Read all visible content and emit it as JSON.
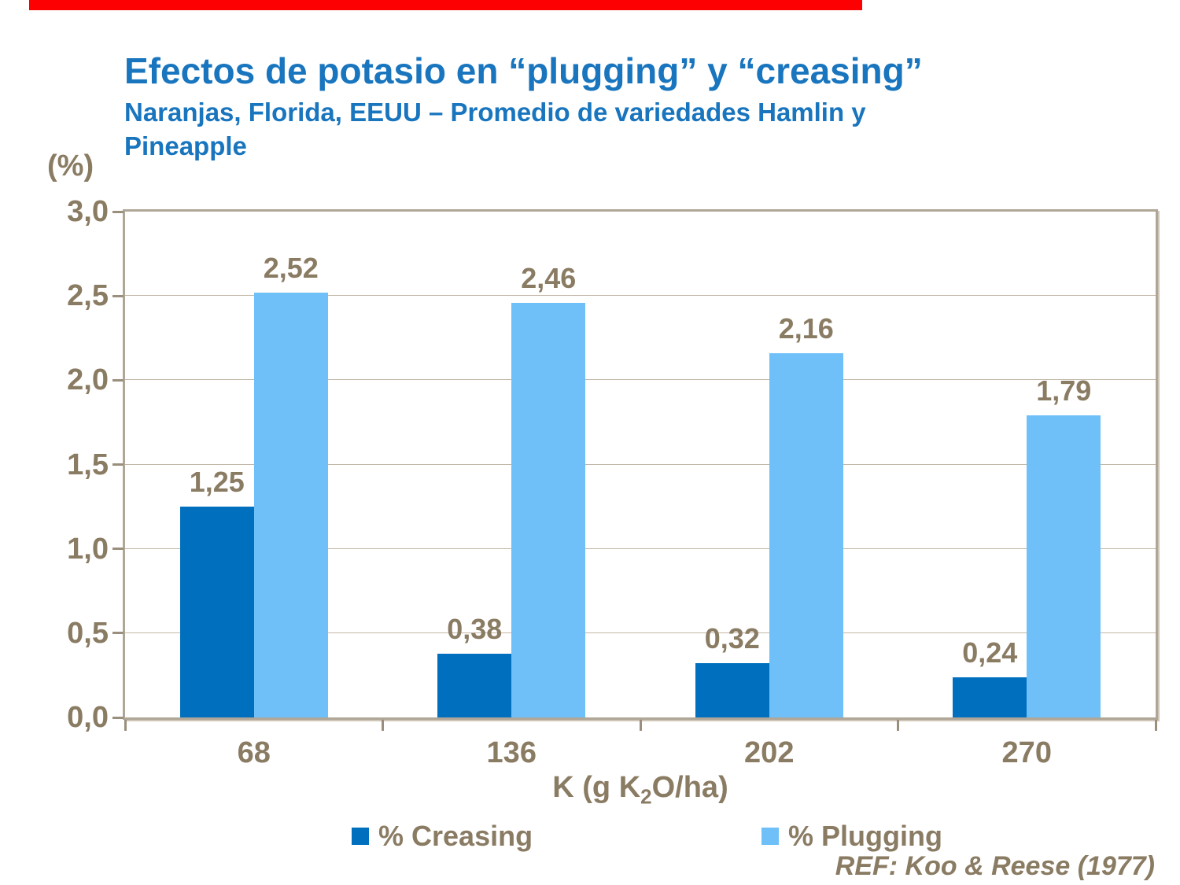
{
  "top_bar": {
    "color": "#fd0002"
  },
  "header": {
    "title": "Efectos de potasio en “plugging” y “creasing”",
    "subtitle": "Naranjas, Florida, EEUU – Promedio de variedades Hamlin y\nPineapple"
  },
  "axis": {
    "y_unit_label": "(%)",
    "x_title_prefix": "K (g K",
    "x_title_sub": "2",
    "x_title_suffix": "O/ha)"
  },
  "chart_data": {
    "type": "bar",
    "title": "Efectos de potasio en “plugging” y “creasing”",
    "subtitle": "Naranjas, Florida, EEUU – Promedio de variedades Hamlin y Pineapple",
    "categories": [
      "68",
      "136",
      "202",
      "270"
    ],
    "series": [
      {
        "name": "% Creasing",
        "color": "#0070be",
        "values": [
          1.25,
          0.38,
          0.32,
          0.24
        ],
        "labels": [
          "1,25",
          "0,38",
          "0,32",
          "0,24"
        ]
      },
      {
        "name": "% Plugging",
        "color": "#6fc0f9",
        "values": [
          2.52,
          2.46,
          2.16,
          1.79
        ],
        "labels": [
          "2,52",
          "2,46",
          "2,16",
          "1,79"
        ]
      }
    ],
    "xlabel": "K (g K2O/ha)",
    "ylabel": "(%)",
    "ylim": [
      0,
      3
    ],
    "ytick_step": 0.5,
    "yticks": [
      "3,0",
      "2,5",
      "2,0",
      "1,5",
      "1,0",
      "0,5",
      "0,0"
    ],
    "grid": true,
    "legend_position": "bottom",
    "value_label_color": "#8a7b63",
    "axis_text_color": "#8a7b63",
    "gridline_color": "#c2b7a6",
    "frame_color": "#b0a697"
  },
  "legend": {
    "items": [
      {
        "label": "% Creasing",
        "color": "#0070be"
      },
      {
        "label": "% Plugging",
        "color": "#6fc0f9"
      }
    ]
  },
  "footer": {
    "reference": "REF: Koo & Reese (1977)"
  }
}
